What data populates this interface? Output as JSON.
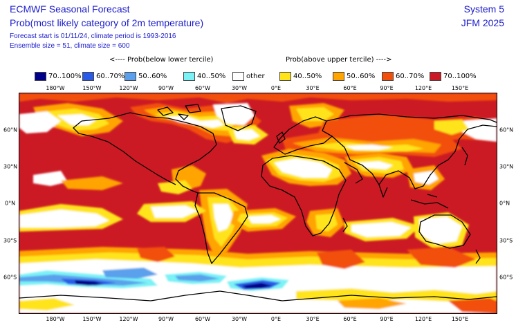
{
  "header": {
    "title": "ECMWF Seasonal Forecast",
    "subtitle": "Prob(most likely category of 2m temperature)",
    "forecast_line": "Forecast start is 01/11/24, climate period is 1993-2016",
    "ensemble_line": "Ensemble size = 51, climate size = 600",
    "system": "System 5",
    "period": "JFM 2025"
  },
  "legend": {
    "below_label": "<---- Prob(below lower tercile)",
    "above_label": "Prob(above upper tercile) ---->",
    "items": [
      {
        "label": "70..100%",
        "color": "#00008b"
      },
      {
        "label": "60..70%",
        "color": "#2a5be8"
      },
      {
        "label": "50..60%",
        "color": "#5aa0ec"
      },
      {
        "label": "40..50%",
        "color": "#7af2f6"
      },
      {
        "label": "other",
        "color": "#ffffff"
      },
      {
        "label": "40..50%",
        "color": "#ffe41a"
      },
      {
        "label": "50..60%",
        "color": "#ffa400"
      },
      {
        "label": "60..70%",
        "color": "#f24f0a"
      },
      {
        "label": "70..100%",
        "color": "#cc1a24"
      }
    ]
  },
  "axes": {
    "lon_labels": [
      "180°W",
      "150°W",
      "120°W",
      "90°W",
      "60°W",
      "30°W",
      "0°E",
      "30°E",
      "60°E",
      "90°E",
      "120°E",
      "150°E"
    ],
    "lat_left": [
      "60°N",
      "30°N",
      "0°N",
      "30°S",
      "60°S"
    ],
    "lat_right": [
      "60°N",
      "30°N",
      "0°N",
      "30°S",
      "60°S"
    ]
  }
}
